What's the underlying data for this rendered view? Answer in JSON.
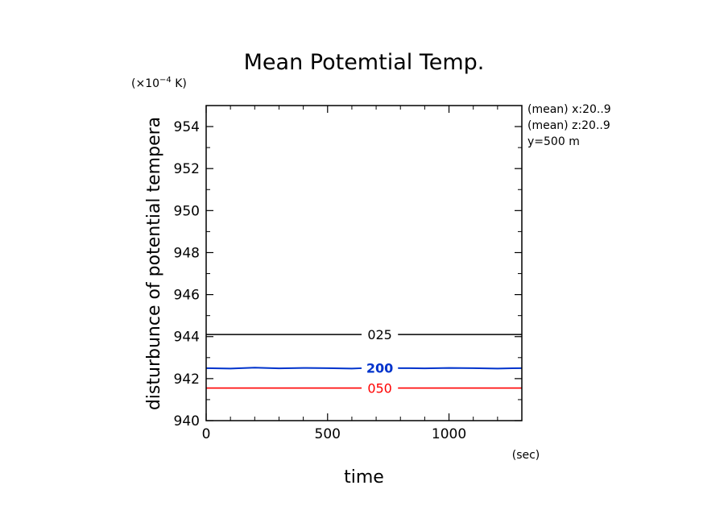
{
  "chart_data": {
    "type": "line",
    "title": "Mean Potemtial Temp.",
    "xlabel": "time",
    "xunit": "(sec)",
    "ylabel": "disturbunce of potential tempera",
    "yunit_prefix": "(×10",
    "yunit_exp": "−4",
    "yunit_suffix": " K)",
    "xlim": [
      0,
      1300
    ],
    "ylim": [
      940,
      955
    ],
    "xticks": [
      0,
      500,
      1000
    ],
    "xtick_labels": [
      "0",
      "500",
      "1000"
    ],
    "yticks": [
      940,
      942,
      944,
      946,
      948,
      950,
      952,
      954
    ],
    "ytick_labels": [
      "940",
      "942",
      "944",
      "946",
      "948",
      "950",
      "952",
      "954"
    ],
    "grid": false,
    "annotations": [
      "(mean) x:20..9",
      "(mean) z:20..9",
      "y=500 m"
    ],
    "series": [
      {
        "name": "025",
        "color": "#000000",
        "x": [
          0,
          1300
        ],
        "y": [
          944.1,
          944.1
        ]
      },
      {
        "name": "200",
        "color": "#0033cc",
        "x": [
          0,
          100,
          200,
          300,
          400,
          500,
          600,
          700,
          800,
          900,
          1000,
          1100,
          1200,
          1300
        ],
        "y": [
          942.5,
          942.48,
          942.52,
          942.49,
          942.51,
          942.5,
          942.48,
          942.52,
          942.5,
          942.49,
          942.51,
          942.5,
          942.48,
          942.5
        ]
      },
      {
        "name": "050",
        "color": "#ff0000",
        "x": [
          0,
          1300
        ],
        "y": [
          941.55,
          941.55
        ]
      }
    ]
  }
}
